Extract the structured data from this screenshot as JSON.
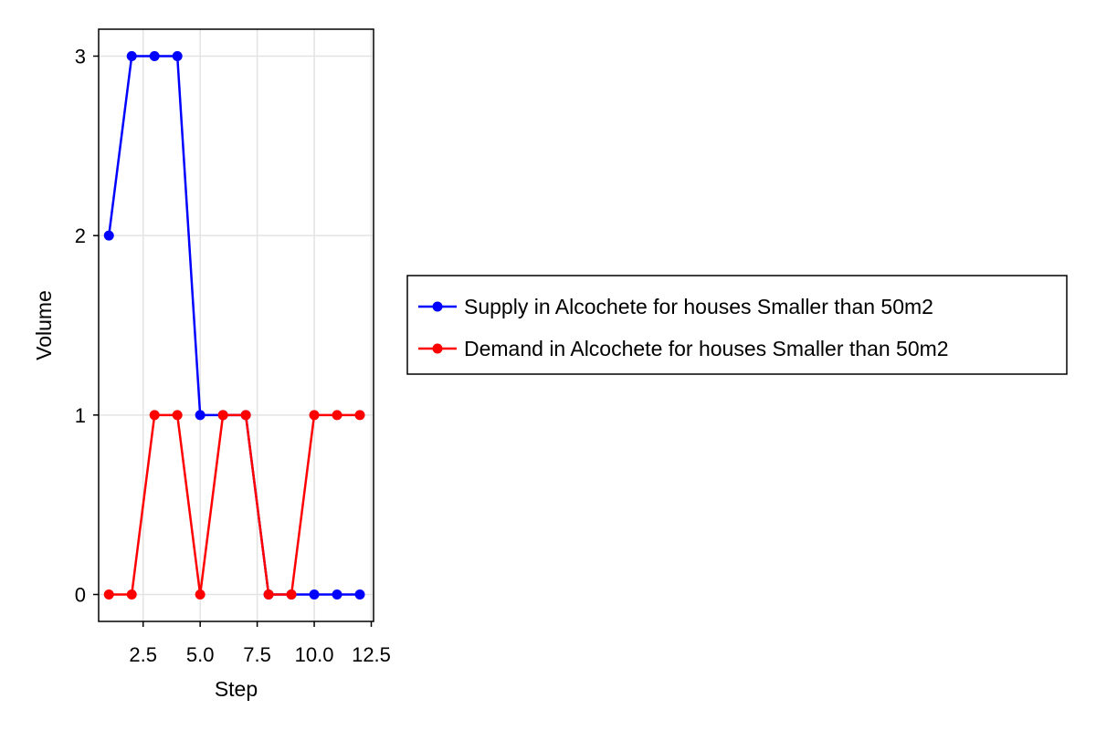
{
  "chart_data": {
    "type": "line",
    "title": "",
    "xlabel": "Step",
    "ylabel": "Volume",
    "xlim": [
      0.55,
      12.6
    ],
    "ylim": [
      -0.15,
      3.15
    ],
    "xticks": [
      2.5,
      5.0,
      7.5,
      10.0,
      12.5
    ],
    "xtick_labels": [
      "2.5",
      "5.0",
      "7.5",
      "10.0",
      "12.5"
    ],
    "yticks": [
      0,
      1,
      2,
      3
    ],
    "ytick_labels": [
      "0",
      "1",
      "2",
      "3"
    ],
    "grid": true,
    "legend_position": "right",
    "series": [
      {
        "name": "Supply in Alcochete for houses Smaller than 50m2",
        "color": "#0000ff",
        "marker": "circle",
        "x": [
          1,
          2,
          3,
          4,
          5,
          6,
          7,
          8,
          9,
          10,
          11,
          12
        ],
        "y": [
          2,
          3,
          3,
          3,
          1,
          1,
          1,
          0,
          0,
          0,
          0,
          0
        ]
      },
      {
        "name": "Demand in Alcochete for houses Smaller than 50m2",
        "color": "#ff0000",
        "marker": "circle",
        "x": [
          1,
          2,
          3,
          4,
          5,
          6,
          7,
          8,
          9,
          10,
          11,
          12
        ],
        "y": [
          0,
          0,
          1,
          1,
          0,
          1,
          1,
          0,
          0,
          1,
          1,
          1
        ]
      }
    ]
  }
}
